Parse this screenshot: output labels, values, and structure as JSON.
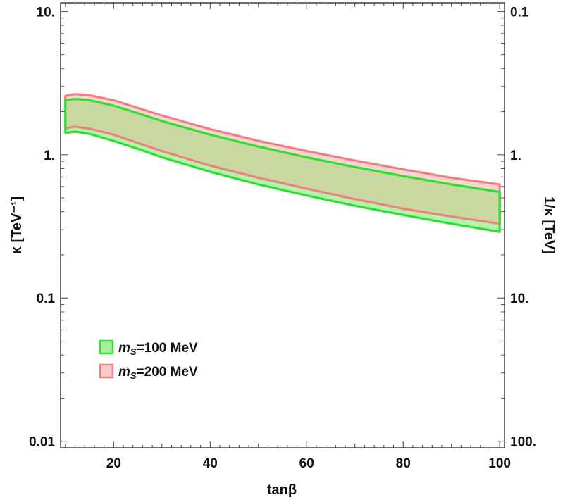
{
  "chart_data": {
    "type": "area",
    "title": "",
    "xlabel": "tanβ",
    "ylabel": "κ  [TeV⁻¹]",
    "y2label": "1/κ  [TeV]",
    "xlim": [
      9,
      101
    ],
    "ylim": [
      0.009,
      11.5
    ],
    "yscale": "log",
    "grid": false,
    "legend_position": "center-left",
    "x_ticks": [
      20,
      40,
      60,
      80,
      100
    ],
    "x_tick_labels": [
      "20",
      "40",
      "60",
      "80",
      "100"
    ],
    "y_ticks": [
      0.01,
      0.1,
      1,
      10
    ],
    "y_tick_labels": [
      "0.01",
      "0.1",
      "1.",
      "10."
    ],
    "y2_ticks": [
      100,
      10,
      1,
      0.1
    ],
    "y2_tick_labels": [
      "100.",
      "10.",
      "1.",
      "0.1"
    ],
    "x": [
      10,
      12,
      15,
      20,
      25,
      30,
      40,
      50,
      60,
      70,
      80,
      90,
      100
    ],
    "series": [
      {
        "name": "m_S=100 MeV",
        "legend_label": "=100 MeV",
        "color": "#2ee02e",
        "fill": "#a8f0a0",
        "upper": [
          2.4,
          2.45,
          2.4,
          2.2,
          1.95,
          1.72,
          1.38,
          1.14,
          0.96,
          0.82,
          0.71,
          0.62,
          0.55
        ],
        "lower": [
          1.42,
          1.45,
          1.4,
          1.25,
          1.1,
          0.96,
          0.76,
          0.62,
          0.52,
          0.44,
          0.38,
          0.33,
          0.29
        ]
      },
      {
        "name": "m_S=200 MeV",
        "legend_label": "=200 MeV",
        "color": "#f08080",
        "fill": "#f8cccc",
        "upper": [
          2.58,
          2.65,
          2.6,
          2.4,
          2.12,
          1.88,
          1.51,
          1.25,
          1.06,
          0.91,
          0.79,
          0.69,
          0.62
        ],
        "lower": [
          1.53,
          1.57,
          1.52,
          1.38,
          1.21,
          1.06,
          0.84,
          0.69,
          0.58,
          0.49,
          0.42,
          0.37,
          0.33
        ]
      }
    ],
    "overlap_fill": "#c8d8a0",
    "legend_symbol": "m",
    "legend_subscript": "S"
  }
}
